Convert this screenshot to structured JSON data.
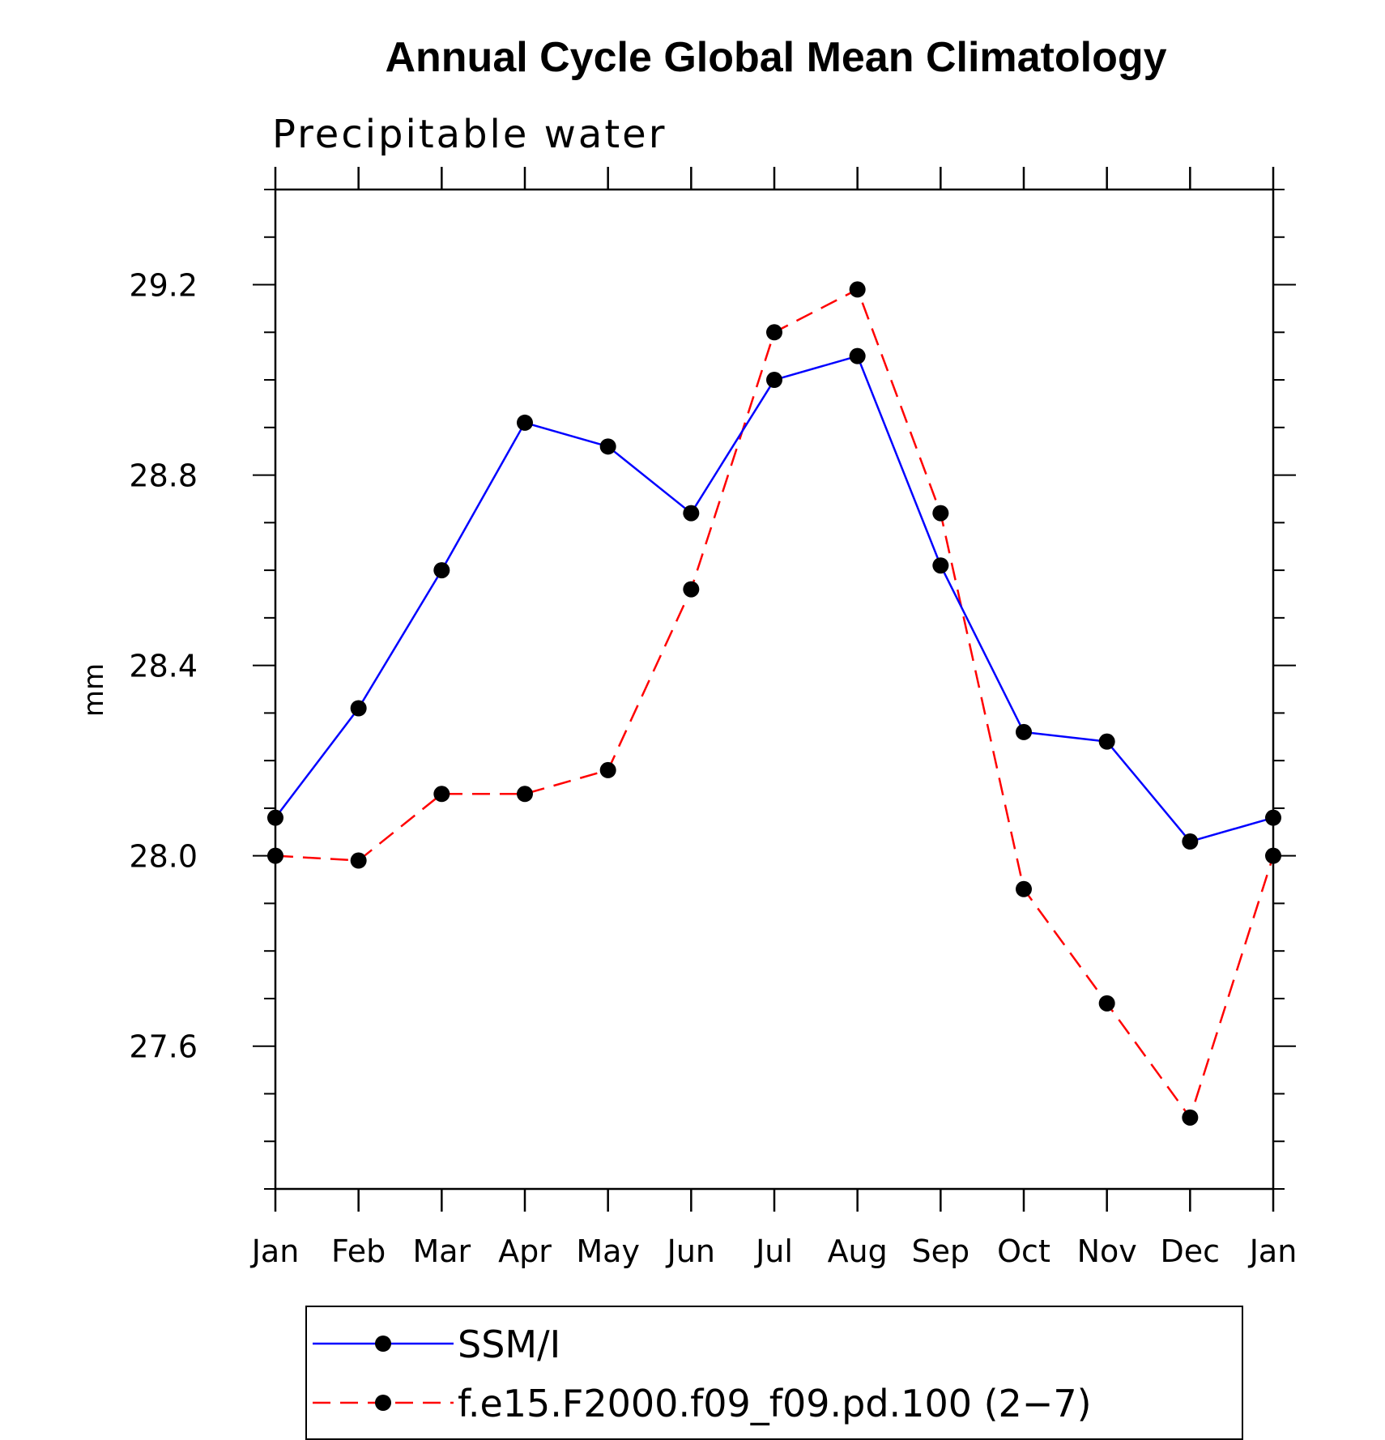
{
  "chart_data": {
    "type": "line",
    "title": "Annual Cycle Global Mean Climatology",
    "subtitle": "Precipitable water",
    "ylabel": "mm",
    "xlabel": "",
    "categories": [
      "Jan",
      "Feb",
      "Mar",
      "Apr",
      "May",
      "Jun",
      "Jul",
      "Aug",
      "Sep",
      "Oct",
      "Nov",
      "Dec",
      "Jan"
    ],
    "ylim": [
      27.3,
      29.4
    ],
    "yticks": [
      "27.6",
      "28.0",
      "28.4",
      "28.8",
      "29.2"
    ],
    "grid": false,
    "legend_position": "bottom",
    "series": [
      {
        "name": "SSM/I",
        "color": "#0000ff",
        "line_style": "solid",
        "marker": "filled-circle",
        "values": [
          28.08,
          28.31,
          28.6,
          28.91,
          28.86,
          28.72,
          29.0,
          29.05,
          28.61,
          28.26,
          28.24,
          28.03,
          28.08
        ]
      },
      {
        "name": "f.e15.F2000.f09_f09.pd.100 (2−7)",
        "color": "#ff0000",
        "line_style": "dashed",
        "marker": "filled-circle",
        "values": [
          28.0,
          27.99,
          28.13,
          28.13,
          28.18,
          28.56,
          29.1,
          29.19,
          28.72,
          27.93,
          27.69,
          27.45,
          28.0
        ]
      }
    ]
  }
}
